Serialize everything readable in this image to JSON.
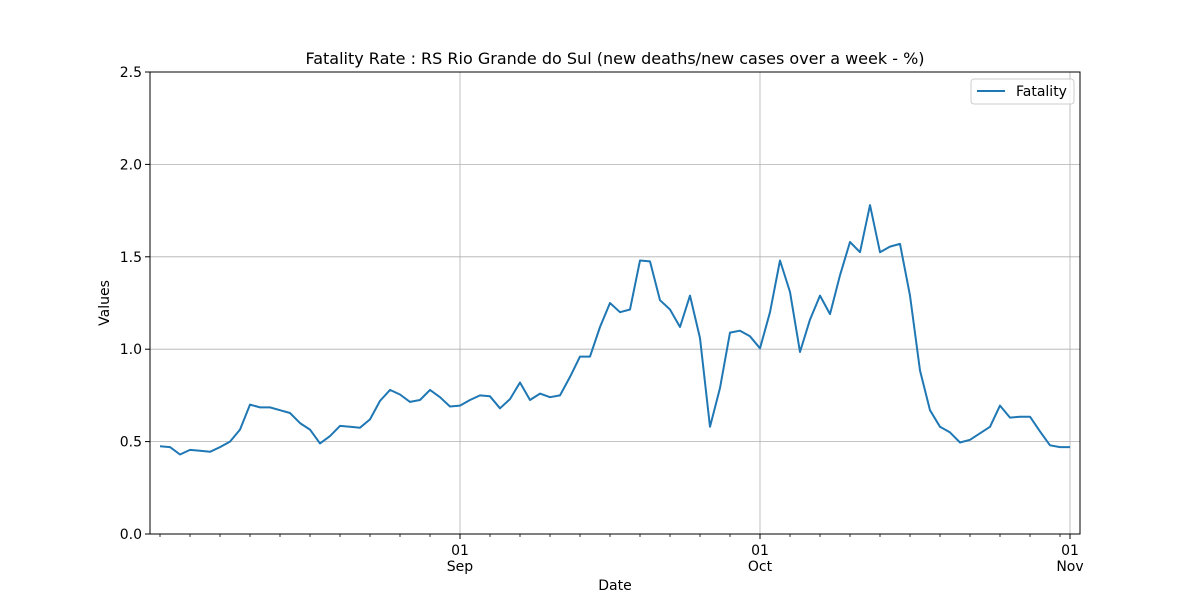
{
  "chart_data": {
    "type": "line",
    "title": "Fatality Rate : RS Rio Grande do Sul (new deaths/new cases over a week - %)",
    "xlabel": "Date",
    "ylabel": "Values",
    "ylim": [
      0,
      2.5
    ],
    "xlim": [
      "2020-08-01",
      "2020-11-02"
    ],
    "y_ticks": [
      {
        "value": 0.0,
        "label": "0.0"
      },
      {
        "value": 0.5,
        "label": "0.5"
      },
      {
        "value": 1.0,
        "label": "1.0"
      },
      {
        "value": 1.5,
        "label": "1.5"
      },
      {
        "value": 2.0,
        "label": "2.0"
      },
      {
        "value": 2.5,
        "label": "2.5"
      }
    ],
    "x_major_ticks": [
      {
        "date": "2020-09-01",
        "day": "01",
        "month": "Sep"
      },
      {
        "date": "2020-10-01",
        "day": "01",
        "month": "Oct"
      },
      {
        "date": "2020-11-01",
        "day": "01",
        "month": "Nov"
      }
    ],
    "grid": true,
    "legend_position": "top-right",
    "colors": {
      "series": "#1f77b4",
      "grid": "#b0b0b0",
      "axes": "#000000"
    },
    "series": [
      {
        "name": "Fatality",
        "x": [
          "2020-08-02",
          "2020-08-03",
          "2020-08-04",
          "2020-08-05",
          "2020-08-06",
          "2020-08-07",
          "2020-08-08",
          "2020-08-09",
          "2020-08-10",
          "2020-08-11",
          "2020-08-12",
          "2020-08-13",
          "2020-08-14",
          "2020-08-15",
          "2020-08-16",
          "2020-08-17",
          "2020-08-18",
          "2020-08-19",
          "2020-08-20",
          "2020-08-21",
          "2020-08-22",
          "2020-08-23",
          "2020-08-24",
          "2020-08-25",
          "2020-08-26",
          "2020-08-27",
          "2020-08-28",
          "2020-08-29",
          "2020-08-30",
          "2020-08-31",
          "2020-09-01",
          "2020-09-02",
          "2020-09-03",
          "2020-09-04",
          "2020-09-05",
          "2020-09-06",
          "2020-09-07",
          "2020-09-08",
          "2020-09-09",
          "2020-09-10",
          "2020-09-11",
          "2020-09-12",
          "2020-09-13",
          "2020-09-14",
          "2020-09-15",
          "2020-09-16",
          "2020-09-17",
          "2020-09-18",
          "2020-09-19",
          "2020-09-20",
          "2020-09-21",
          "2020-09-22",
          "2020-09-23",
          "2020-09-24",
          "2020-09-25",
          "2020-09-26",
          "2020-09-27",
          "2020-09-28",
          "2020-09-29",
          "2020-09-30",
          "2020-10-01",
          "2020-10-02",
          "2020-10-03",
          "2020-10-04",
          "2020-10-05",
          "2020-10-06",
          "2020-10-07",
          "2020-10-08",
          "2020-10-09",
          "2020-10-10",
          "2020-10-11",
          "2020-10-12",
          "2020-10-13",
          "2020-10-14",
          "2020-10-15",
          "2020-10-16",
          "2020-10-17",
          "2020-10-18",
          "2020-10-19",
          "2020-10-20",
          "2020-10-21",
          "2020-10-22",
          "2020-10-23",
          "2020-10-24",
          "2020-10-25",
          "2020-10-26",
          "2020-10-27",
          "2020-10-28",
          "2020-10-29",
          "2020-10-30",
          "2020-10-31",
          "2020-11-01"
        ],
        "values": [
          0.475,
          0.47,
          0.43,
          0.455,
          0.45,
          0.445,
          0.47,
          0.5,
          0.565,
          0.7,
          0.685,
          0.685,
          0.67,
          0.655,
          0.6,
          0.565,
          0.49,
          0.53,
          0.585,
          0.58,
          0.575,
          0.62,
          0.72,
          0.78,
          0.755,
          0.715,
          0.725,
          0.78,
          0.74,
          0.69,
          0.695,
          0.725,
          0.75,
          0.745,
          0.68,
          0.73,
          0.82,
          0.725,
          0.76,
          0.74,
          0.75,
          0.85,
          0.96,
          0.96,
          1.12,
          1.25,
          1.2,
          1.215,
          1.48,
          1.475,
          1.265,
          1.215,
          1.12,
          1.29,
          1.06,
          0.58,
          0.79,
          1.09,
          1.1,
          1.07,
          1.005,
          1.2,
          1.48,
          1.31,
          0.985,
          1.16,
          1.29,
          1.19,
          1.4,
          1.58,
          1.525,
          1.78,
          1.525,
          1.555,
          1.57,
          1.29,
          0.885,
          0.67,
          0.58,
          0.55,
          0.495,
          0.51,
          0.545,
          0.58,
          0.695,
          0.63,
          0.635,
          0.635,
          0.555,
          0.48,
          0.47,
          0.47
        ]
      }
    ]
  }
}
